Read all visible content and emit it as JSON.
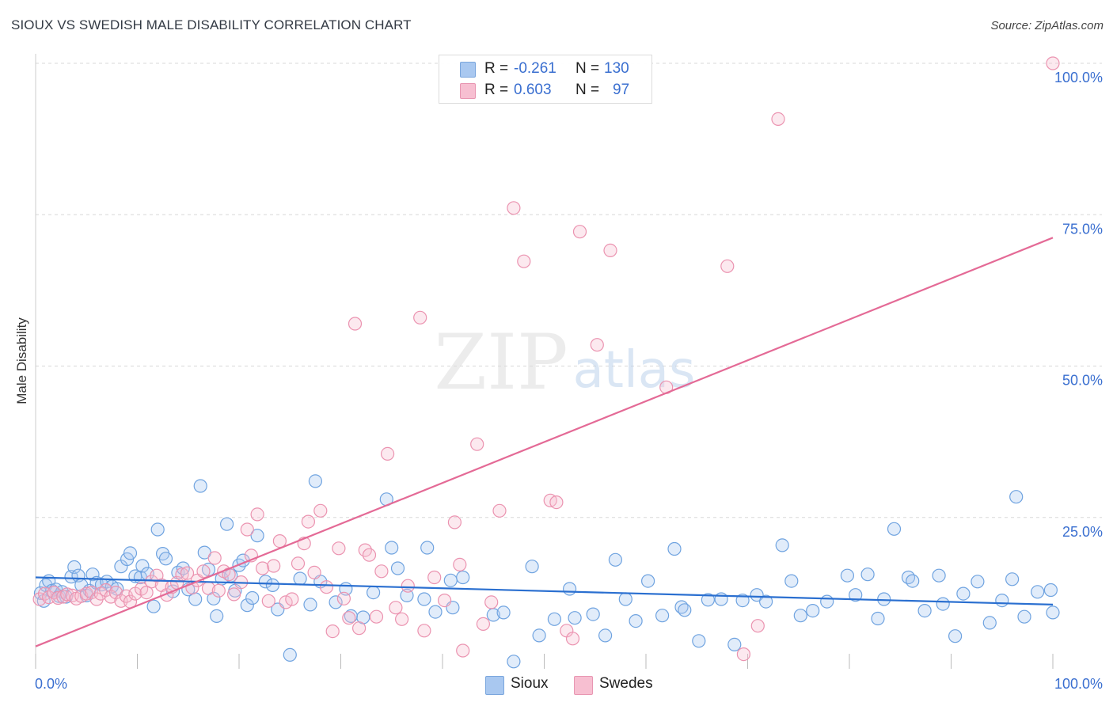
{
  "header": {
    "title": "SIOUX VS SWEDISH MALE DISABILITY CORRELATION CHART",
    "source": "Source: ZipAtlas.com"
  },
  "watermark": {
    "zip": "ZIP",
    "atlas": "atlas"
  },
  "legend": {
    "rows": [
      {
        "r_label": "R =",
        "r_value": "-0.261",
        "n_label": "N =",
        "n_value": "130",
        "color": "#a9c8f0",
        "border": "#7aa6dd"
      },
      {
        "r_label": "R =",
        "r_value": "0.603",
        "n_label": "N =",
        "n_value": "97",
        "color": "#f7bfd1",
        "border": "#e896b2"
      }
    ]
  },
  "bottom_legend": [
    {
      "label": "Sioux",
      "color": "#a9c8f0",
      "border": "#7aa6dd"
    },
    {
      "label": "Swedes",
      "color": "#f7bfd1",
      "border": "#e896b2"
    }
  ],
  "chart_data": {
    "type": "scatter",
    "title": "SIOUX VS SWEDISH MALE DISABILITY CORRELATION CHART",
    "xlabel": "",
    "ylabel": "Male Disability",
    "xlim": [
      0,
      100
    ],
    "ylim": [
      0,
      100
    ],
    "x_tick_labels": [
      "0.0%",
      "100.0%"
    ],
    "y_tick_labels": [
      "25.0%",
      "50.0%",
      "75.0%",
      "100.0%"
    ],
    "y_ticks": [
      25,
      50,
      75,
      100
    ],
    "grid": true,
    "legend_position": "top-center",
    "series": [
      {
        "name": "Sioux",
        "color": "#6fa3e0",
        "fill": "rgba(170,200,240,0.35)",
        "line_color": "#2a6fd0",
        "trend": {
          "x": [
            0,
            100
          ],
          "y": [
            15.1,
            10.6
          ]
        },
        "points": [
          [
            0.5,
            12.5
          ],
          [
            0.8,
            11.2
          ],
          [
            1,
            13.8
          ],
          [
            1.3,
            14.5
          ],
          [
            1.6,
            12.9
          ],
          [
            2,
            13.1
          ],
          [
            2.3,
            12
          ],
          [
            2.6,
            12.7
          ],
          [
            3,
            11.9
          ],
          [
            3.5,
            15.2
          ],
          [
            3.8,
            16.8
          ],
          [
            4.2,
            15.4
          ],
          [
            4.5,
            13.8
          ],
          [
            5,
            12.1
          ],
          [
            5.3,
            12.9
          ],
          [
            5.6,
            15.6
          ],
          [
            6,
            14.2
          ],
          [
            6.5,
            13.9
          ],
          [
            7,
            14.4
          ],
          [
            7.5,
            13.6
          ],
          [
            8,
            13.2
          ],
          [
            8.4,
            16.9
          ],
          [
            9,
            18.1
          ],
          [
            9.3,
            19.1
          ],
          [
            9.8,
            15.3
          ],
          [
            10.3,
            15.1
          ],
          [
            10.5,
            17
          ],
          [
            11,
            15.7
          ],
          [
            11.6,
            10.3
          ],
          [
            12,
            23
          ],
          [
            12.5,
            19
          ],
          [
            12.8,
            18.2
          ],
          [
            13.5,
            12.8
          ],
          [
            14,
            15.9
          ],
          [
            14.5,
            16.6
          ],
          [
            15,
            13.1
          ],
          [
            15.7,
            11.5
          ],
          [
            16.2,
            30.2
          ],
          [
            16.6,
            19.2
          ],
          [
            17,
            16.4
          ],
          [
            17.5,
            11.6
          ],
          [
            17.8,
            8.7
          ],
          [
            18.3,
            14.9
          ],
          [
            18.8,
            23.9
          ],
          [
            19.2,
            15.4
          ],
          [
            19.6,
            12.9
          ],
          [
            20,
            17.1
          ],
          [
            20.4,
            17.9
          ],
          [
            20.8,
            10.5
          ],
          [
            21.3,
            11.7
          ],
          [
            21.8,
            22
          ],
          [
            22.6,
            14.4
          ],
          [
            23.3,
            13.8
          ],
          [
            23.8,
            9.8
          ],
          [
            25,
            2.3
          ],
          [
            26,
            14.9
          ],
          [
            27,
            10.6
          ],
          [
            27.5,
            31
          ],
          [
            28,
            14.4
          ],
          [
            29.5,
            11
          ],
          [
            30.5,
            13.2
          ],
          [
            31,
            8.7
          ],
          [
            32.2,
            8.5
          ],
          [
            33.2,
            12.6
          ],
          [
            34.5,
            28
          ],
          [
            35,
            20
          ],
          [
            35.6,
            16.6
          ],
          [
            36.5,
            12.1
          ],
          [
            38.2,
            11.5
          ],
          [
            38.5,
            20
          ],
          [
            39.3,
            9.4
          ],
          [
            40.8,
            14.6
          ],
          [
            41,
            10.1
          ],
          [
            42,
            15.1
          ],
          [
            45,
            8.9
          ],
          [
            46,
            9.3
          ],
          [
            47,
            1.2
          ],
          [
            48.8,
            16.9
          ],
          [
            49.5,
            5.5
          ],
          [
            51,
            8.2
          ],
          [
            52.5,
            13.2
          ],
          [
            53,
            8.4
          ],
          [
            54.8,
            9
          ],
          [
            56,
            5.5
          ],
          [
            57,
            18
          ],
          [
            58,
            11.5
          ],
          [
            59,
            7.9
          ],
          [
            60.2,
            14.5
          ],
          [
            61.6,
            8.8
          ],
          [
            62.8,
            19.8
          ],
          [
            63.5,
            10.2
          ],
          [
            63.8,
            9.7
          ],
          [
            65.2,
            4.6
          ],
          [
            66.1,
            11.4
          ],
          [
            67.4,
            11.5
          ],
          [
            68.7,
            4
          ],
          [
            69.5,
            11.3
          ],
          [
            70.9,
            12.2
          ],
          [
            71.8,
            11.1
          ],
          [
            73.4,
            20.4
          ],
          [
            74.3,
            14.5
          ],
          [
            75.2,
            8.8
          ],
          [
            76.4,
            9.6
          ],
          [
            77.8,
            11.1
          ],
          [
            79.8,
            15.4
          ],
          [
            80.6,
            12.2
          ],
          [
            81.8,
            15.6
          ],
          [
            82.8,
            8.3
          ],
          [
            83.4,
            11.5
          ],
          [
            84.4,
            23.1
          ],
          [
            85.8,
            15.1
          ],
          [
            86.2,
            14.5
          ],
          [
            87.4,
            9.6
          ],
          [
            88.8,
            15.4
          ],
          [
            89.2,
            10.7
          ],
          [
            90.4,
            5.4
          ],
          [
            91.2,
            12.4
          ],
          [
            92.6,
            14.4
          ],
          [
            93.8,
            7.6
          ],
          [
            95,
            11.3
          ],
          [
            96,
            14.8
          ],
          [
            96.4,
            28.4
          ],
          [
            97.2,
            8.6
          ],
          [
            98.5,
            12.7
          ],
          [
            99.8,
            13
          ],
          [
            100,
            9.3
          ]
        ]
      },
      {
        "name": "Swedes",
        "color": "#eb93b0",
        "fill": "rgba(247,191,209,0.35)",
        "line_color": "#e46a96",
        "trend": {
          "x": [
            0,
            100
          ],
          "y": [
            3.7,
            71.2
          ]
        },
        "points": [
          [
            0.4,
            11.5
          ],
          [
            0.9,
            12.4
          ],
          [
            1.3,
            11.8
          ],
          [
            1.8,
            12.6
          ],
          [
            2.2,
            11.7
          ],
          [
            2.7,
            11.9
          ],
          [
            3.1,
            12.3
          ],
          [
            3.6,
            12.1
          ],
          [
            4,
            11.6
          ],
          [
            4.5,
            12
          ],
          [
            5,
            12.4
          ],
          [
            5.5,
            12.6
          ],
          [
            6,
            11.5
          ],
          [
            6.4,
            12.4
          ],
          [
            6.9,
            13
          ],
          [
            7.4,
            11.9
          ],
          [
            7.9,
            12.6
          ],
          [
            8.4,
            11.2
          ],
          [
            8.9,
            12
          ],
          [
            9.3,
            11.1
          ],
          [
            9.8,
            12.4
          ],
          [
            10.4,
            13.2
          ],
          [
            10.9,
            12.6
          ],
          [
            11.4,
            14.4
          ],
          [
            11.9,
            15.4
          ],
          [
            12.4,
            13.8
          ],
          [
            12.9,
            12.2
          ],
          [
            13.4,
            13.5
          ],
          [
            13.9,
            14.2
          ],
          [
            14.4,
            15.6
          ],
          [
            14.9,
            15.8
          ],
          [
            15.4,
            13.4
          ],
          [
            15.9,
            14.6
          ],
          [
            16.5,
            16.1
          ],
          [
            17,
            13.3
          ],
          [
            17.6,
            18.3
          ],
          [
            18,
            12.9
          ],
          [
            18.5,
            16.1
          ],
          [
            19,
            15.6
          ],
          [
            19.5,
            12.3
          ],
          [
            20.2,
            14.3
          ],
          [
            20.8,
            23
          ],
          [
            21.2,
            18.7
          ],
          [
            21.8,
            25.5
          ],
          [
            22.3,
            16.6
          ],
          [
            22.9,
            11.2
          ],
          [
            23.4,
            17
          ],
          [
            24,
            21.1
          ],
          [
            24.6,
            11
          ],
          [
            25.2,
            11.5
          ],
          [
            25.8,
            17.4
          ],
          [
            26.4,
            20.7
          ],
          [
            26.8,
            24.3
          ],
          [
            27.4,
            15.9
          ],
          [
            28,
            26.1
          ],
          [
            28.6,
            13.5
          ],
          [
            29.2,
            6.2
          ],
          [
            29.8,
            19.9
          ],
          [
            30.3,
            11.6
          ],
          [
            30.8,
            8.4
          ],
          [
            31.4,
            57
          ],
          [
            31.8,
            6.7
          ],
          [
            32.4,
            19.6
          ],
          [
            32.8,
            18.8
          ],
          [
            33.5,
            8.6
          ],
          [
            34,
            16.1
          ],
          [
            34.6,
            35.5
          ],
          [
            35.4,
            10.1
          ],
          [
            36,
            8.2
          ],
          [
            36.6,
            13.7
          ],
          [
            37.8,
            58
          ],
          [
            38.2,
            6.3
          ],
          [
            39.2,
            15.1
          ],
          [
            40.2,
            11.3
          ],
          [
            41.2,
            24.2
          ],
          [
            41.7,
            17.2
          ],
          [
            42,
            3
          ],
          [
            43.4,
            37.1
          ],
          [
            44,
            7.4
          ],
          [
            44.8,
            11
          ],
          [
            45.6,
            26.1
          ],
          [
            47,
            76.1
          ],
          [
            48,
            67.3
          ],
          [
            50.6,
            27.8
          ],
          [
            51.2,
            27.5
          ],
          [
            52.2,
            6.3
          ],
          [
            52.8,
            5
          ],
          [
            53.5,
            72.2
          ],
          [
            55.2,
            53.5
          ],
          [
            56.5,
            69.1
          ],
          [
            62,
            46.5
          ],
          [
            68,
            66.5
          ],
          [
            69.6,
            2.4
          ],
          [
            71,
            7.1
          ],
          [
            73,
            90.8
          ],
          [
            100,
            100
          ]
        ]
      }
    ]
  }
}
